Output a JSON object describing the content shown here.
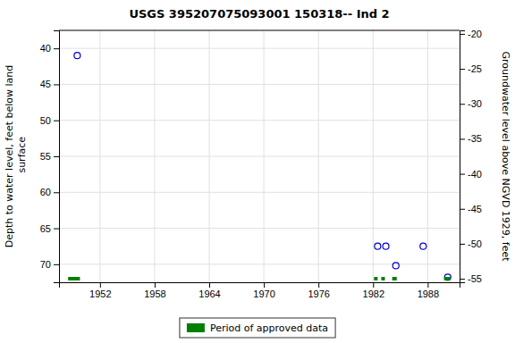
{
  "chart_data": {
    "type": "scatter",
    "title": "USGS 395207075093001 150318-- Ind 2",
    "ylabel": "Depth to water level, feet below land\n surface",
    "y2label": "Groundwater level above NGVD 1929, feet",
    "xlim": [
      1947.5,
      1991.5
    ],
    "xticks": [
      1952,
      1958,
      1964,
      1970,
      1976,
      1982,
      1988
    ],
    "ylim": [
      72.5,
      37.5
    ],
    "yticks": [
      40,
      45,
      50,
      55,
      60,
      65,
      70
    ],
    "y2lim": [
      -55.5,
      -19.5
    ],
    "y2ticks": [
      -20,
      -25,
      -30,
      -35,
      -40,
      -45,
      -50,
      -55
    ],
    "grid": true,
    "legend": "bottom",
    "series": [
      {
        "type": "scatter",
        "marker": "open-circle",
        "color": "#0000cc",
        "x": [
          1949.5,
          1982.5,
          1983.4,
          1984.5,
          1987.5,
          1990.2
        ],
        "values": [
          41.0,
          67.5,
          67.5,
          70.2,
          67.5,
          71.8
        ]
      },
      {
        "type": "segment",
        "name": "Period of approved data",
        "color": "#008000",
        "periods": [
          [
            1948.5,
            1949.8
          ],
          [
            1982.1,
            1982.5
          ],
          [
            1982.9,
            1983.3
          ],
          [
            1984.1,
            1984.6
          ],
          [
            1989.8,
            1990.5
          ]
        ],
        "level": 72.0
      }
    ]
  }
}
